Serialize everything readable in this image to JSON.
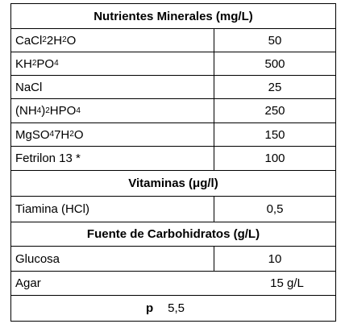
{
  "sections": [
    {
      "title": "Nutrientes Minerales (mg/L)",
      "rows": [
        {
          "name": [
            "CaCl",
            {
              "sub": "2"
            },
            " 2H",
            {
              "sub": "2"
            },
            "O"
          ],
          "value": "50"
        },
        {
          "name": [
            "KH",
            {
              "sub": "2"
            },
            "PO",
            {
              "sub": "4"
            }
          ],
          "value": "500"
        },
        {
          "name": [
            "NaCl"
          ],
          "value": "25"
        },
        {
          "name": [
            "(NH",
            {
              "sub": "4"
            },
            ")",
            {
              "sub": "2"
            },
            "HPO",
            {
              "sub": "4"
            }
          ],
          "value": "250"
        },
        {
          "name": [
            "MgSO",
            {
              "sub": "4"
            },
            " 7H",
            {
              "sub": "2"
            },
            "O"
          ],
          "value": "150"
        },
        {
          "name": [
            "Fetrilon 13 *"
          ],
          "value": "100"
        }
      ]
    },
    {
      "title": "Vitaminas (μg/l)",
      "rows": [
        {
          "name": [
            "Tiamina (HCl)"
          ],
          "value": "0,5"
        }
      ]
    },
    {
      "title": "Fuente de Carbohidratos (g/L)",
      "rows": [
        {
          "name": [
            "Glucosa"
          ],
          "value": "10"
        },
        {
          "name": [
            "Agar"
          ],
          "value": "15 g/L"
        }
      ]
    }
  ],
  "footer": {
    "label": "p",
    "value": "5,5"
  }
}
